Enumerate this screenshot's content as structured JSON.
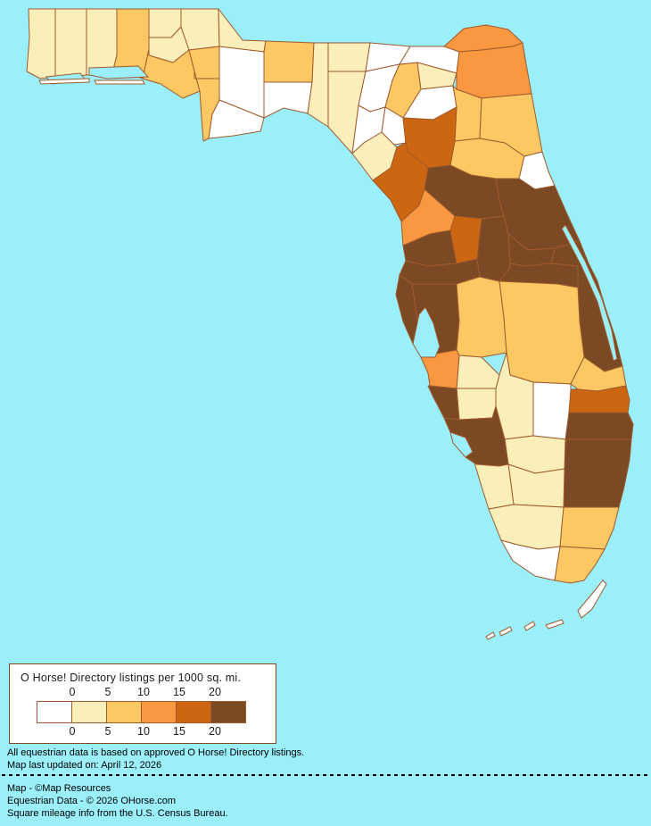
{
  "colors": {
    "ocean": "#9AEFFA",
    "county_border": "#A05A2C",
    "legend_border": "#7B4A1F",
    "island_fill": "#FFFFFF",
    "text": "#000000"
  },
  "legend": {
    "title": "O Horse! Directory listings per 1000 sq. mi.",
    "ticks": [
      "0",
      "5",
      "10",
      "15",
      "20"
    ],
    "categories": [
      {
        "label": "0",
        "color": "#FFFFFF"
      },
      {
        "label": "0-5",
        "color": "#FAEFBB"
      },
      {
        "label": "5-10",
        "color": "#FBC863"
      },
      {
        "label": "10-15",
        "color": "#FA9741"
      },
      {
        "label": "15-20",
        "color": "#CC6611"
      },
      {
        "label": "20+",
        "color": "#7B4A24"
      }
    ]
  },
  "footer": {
    "notes": [
      "All equestrian data is based on approved O Horse! Directory listings.",
      "Map last updated on: April 12, 2026"
    ],
    "credits": [
      "Map - ©Map Resources",
      "Equestrian Data - © 2026 OHorse.com",
      "Square mileage info from the U.S. Census Bureau."
    ]
  },
  "chart_data": {
    "type": "choropleth-map",
    "region": "Florida, USA",
    "metric": "O Horse! Directory listings per 1000 sq. mi.",
    "bins": [
      "0",
      "0-5",
      "5-10",
      "10-15",
      "15-20",
      "20+"
    ],
    "counties": [
      {
        "name": "Escambia",
        "category": "0-5"
      },
      {
        "name": "Santa Rosa",
        "category": "0-5"
      },
      {
        "name": "Okaloosa",
        "category": "0-5"
      },
      {
        "name": "Walton",
        "category": "5-10"
      },
      {
        "name": "Holmes",
        "category": "0-5"
      },
      {
        "name": "Washington",
        "category": "0-5"
      },
      {
        "name": "Jackson",
        "category": "0-5"
      },
      {
        "name": "Bay",
        "category": "5-10"
      },
      {
        "name": "Calhoun",
        "category": "5-10"
      },
      {
        "name": "Gulf",
        "category": "5-10"
      },
      {
        "name": "Gadsden",
        "category": "0-5"
      },
      {
        "name": "Liberty",
        "category": "0"
      },
      {
        "name": "Leon",
        "category": "5-10"
      },
      {
        "name": "Wakulla",
        "category": "0"
      },
      {
        "name": "Franklin",
        "category": "0"
      },
      {
        "name": "Jefferson",
        "category": "0-5"
      },
      {
        "name": "Madison",
        "category": "0-5"
      },
      {
        "name": "Taylor",
        "category": "0-5"
      },
      {
        "name": "Hamilton",
        "category": "0"
      },
      {
        "name": "Suwannee",
        "category": "0"
      },
      {
        "name": "Lafayette",
        "category": "0"
      },
      {
        "name": "Dixie",
        "category": "0-5"
      },
      {
        "name": "Columbia",
        "category": "5-10"
      },
      {
        "name": "Baker",
        "category": "0"
      },
      {
        "name": "Union",
        "category": "0-5"
      },
      {
        "name": "Bradford",
        "category": "0"
      },
      {
        "name": "Nassau",
        "category": "10-15"
      },
      {
        "name": "Duval",
        "category": "10-15"
      },
      {
        "name": "Clay",
        "category": "5-10"
      },
      {
        "name": "St. Johns",
        "category": "5-10"
      },
      {
        "name": "Putnam",
        "category": "5-10"
      },
      {
        "name": "Flagler",
        "category": "0"
      },
      {
        "name": "Gilchrist",
        "category": "0"
      },
      {
        "name": "Alachua",
        "category": "15-20"
      },
      {
        "name": "Levy",
        "category": "15-20"
      },
      {
        "name": "Marion",
        "category": "20+"
      },
      {
        "name": "Citrus",
        "category": "10-15"
      },
      {
        "name": "Sumter",
        "category": "15-20"
      },
      {
        "name": "Hernando",
        "category": "20+"
      },
      {
        "name": "Pasco",
        "category": "20+"
      },
      {
        "name": "Pinellas",
        "category": "20+"
      },
      {
        "name": "Hillsborough",
        "category": "20+"
      },
      {
        "name": "Polk",
        "category": "5-10"
      },
      {
        "name": "Lake",
        "category": "20+"
      },
      {
        "name": "Volusia",
        "category": "20+"
      },
      {
        "name": "Seminole",
        "category": "20+"
      },
      {
        "name": "Orange",
        "category": "20+"
      },
      {
        "name": "Brevard",
        "category": "20+"
      },
      {
        "name": "Osceola",
        "category": "5-10"
      },
      {
        "name": "Indian River",
        "category": "5-10"
      },
      {
        "name": "St. Lucie",
        "category": "15-20"
      },
      {
        "name": "Martin",
        "category": "20+"
      },
      {
        "name": "Palm Beach",
        "category": "20+"
      },
      {
        "name": "Broward",
        "category": "5-10"
      },
      {
        "name": "Miami-Dade",
        "category": "5-10"
      },
      {
        "name": "Okeechobee",
        "category": "0"
      },
      {
        "name": "Highlands",
        "category": "0-5"
      },
      {
        "name": "Hardee",
        "category": "0-5"
      },
      {
        "name": "DeSoto",
        "category": "0-5"
      },
      {
        "name": "Glades",
        "category": "0-5"
      },
      {
        "name": "Hendry",
        "category": "0-5"
      },
      {
        "name": "Charlotte",
        "category": "20+"
      },
      {
        "name": "Lee",
        "category": "0-5"
      },
      {
        "name": "Collier",
        "category": "0-5"
      },
      {
        "name": "Monroe",
        "category": "0"
      },
      {
        "name": "Manatee",
        "category": "10-15"
      },
      {
        "name": "Sarasota",
        "category": "20+"
      }
    ]
  }
}
